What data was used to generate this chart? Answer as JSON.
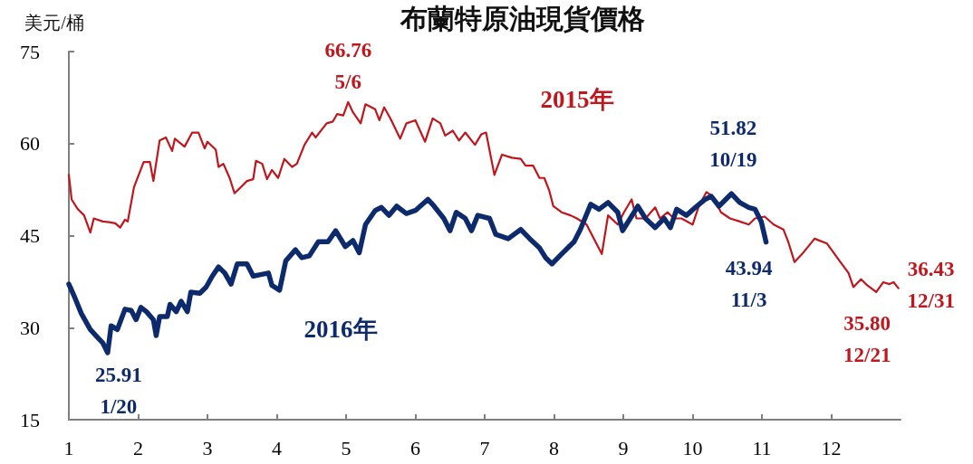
{
  "chart_data": {
    "type": "line",
    "title": "布蘭特原油現貨價格",
    "ylabel": "美元/桶",
    "xlim": [
      1,
      13
    ],
    "xticks": [
      1,
      2,
      3,
      4,
      5,
      6,
      7,
      8,
      9,
      10,
      11,
      12
    ],
    "ylim": [
      15,
      75
    ],
    "yticks": [
      15,
      30,
      45,
      60,
      75
    ],
    "series": [
      {
        "name": "2015年",
        "color": "#c0161d",
        "x": [
          1.0,
          1.04,
          1.13,
          1.22,
          1.31,
          1.36,
          1.49,
          1.58,
          1.67,
          1.74,
          1.81,
          1.85,
          1.94,
          2.08,
          2.17,
          2.22,
          2.31,
          2.4,
          2.49,
          2.53,
          2.67,
          2.78,
          2.87,
          2.96,
          3.0,
          3.12,
          3.16,
          3.23,
          3.32,
          3.39,
          3.48,
          3.57,
          3.66,
          3.7,
          3.79,
          3.86,
          3.93,
          4.02,
          4.11,
          4.22,
          4.29,
          4.4,
          4.51,
          4.56,
          4.72,
          4.81,
          4.87,
          4.96,
          5.03,
          5.1,
          5.21,
          5.28,
          5.42,
          5.48,
          5.55,
          5.64,
          5.78,
          5.87,
          6.0,
          6.14,
          6.25,
          6.36,
          6.43,
          6.54,
          6.63,
          6.72,
          6.86,
          6.95,
          7.02,
          7.14,
          7.25,
          7.39,
          7.52,
          7.59,
          7.7,
          7.79,
          7.86,
          7.93,
          7.99,
          8.11,
          8.24,
          8.33,
          8.47,
          8.69,
          8.78,
          8.92,
          9.01,
          9.12,
          9.19,
          9.32,
          9.46,
          9.53,
          9.64,
          9.73,
          9.84,
          10.0,
          10.09,
          10.2,
          10.29,
          10.41,
          10.54,
          10.68,
          10.81,
          10.9,
          11.04,
          11.17,
          11.31,
          11.38,
          11.47,
          11.58,
          11.76,
          11.94,
          12.12,
          12.25,
          12.32,
          12.43,
          12.52,
          12.65,
          12.75,
          12.84,
          12.9,
          12.97
        ],
        "values": [
          54.9,
          50.9,
          49.3,
          48.3,
          45.5,
          47.8,
          47.3,
          47.2,
          47.0,
          46.3,
          47.6,
          47.3,
          52.9,
          57.0,
          57.0,
          53.9,
          60.5,
          61.0,
          58.8,
          60.8,
          59.5,
          61.8,
          61.8,
          59.2,
          60.3,
          59.0,
          56.2,
          56.7,
          54.4,
          51.9,
          52.9,
          53.9,
          54.2,
          57.2,
          56.7,
          54.2,
          55.7,
          54.4,
          57.5,
          56.2,
          56.7,
          59.8,
          61.8,
          61.0,
          63.3,
          63.6,
          64.8,
          64.6,
          66.76,
          65.1,
          63.3,
          66.4,
          65.6,
          63.8,
          65.9,
          64.1,
          60.8,
          63.3,
          63.8,
          60.3,
          64.1,
          63.3,
          61.3,
          62.1,
          60.5,
          61.8,
          59.8,
          61.5,
          61.8,
          54.9,
          58.2,
          57.7,
          57.5,
          56.4,
          56.4,
          54.4,
          54.4,
          52.4,
          49.8,
          48.8,
          48.3,
          47.8,
          46.8,
          42.0,
          48.3,
          46.8,
          48.8,
          50.9,
          47.8,
          47.8,
          49.6,
          47.8,
          48.8,
          47.8,
          47.8,
          46.8,
          49.8,
          52.1,
          51.4,
          48.8,
          47.8,
          47.3,
          46.8,
          47.8,
          48.1,
          46.8,
          46.0,
          44.0,
          40.7,
          42.0,
          44.5,
          43.7,
          40.9,
          38.9,
          36.6,
          37.9,
          36.9,
          35.8,
          37.4,
          37.1,
          37.4,
          36.43
        ]
      },
      {
        "name": "2016年",
        "color": "#0c2a6c",
        "x": [
          1.0,
          1.09,
          1.18,
          1.31,
          1.43,
          1.49,
          1.56,
          1.61,
          1.7,
          1.81,
          1.9,
          1.97,
          2.04,
          2.12,
          2.22,
          2.26,
          2.31,
          2.42,
          2.46,
          2.55,
          2.62,
          2.71,
          2.76,
          2.89,
          2.98,
          3.07,
          3.16,
          3.25,
          3.34,
          3.43,
          3.57,
          3.66,
          3.75,
          3.88,
          3.93,
          4.04,
          4.13,
          4.27,
          4.36,
          4.47,
          4.6,
          4.74,
          4.85,
          4.99,
          5.1,
          5.19,
          5.28,
          5.42,
          5.51,
          5.62,
          5.73,
          5.87,
          6.0,
          6.18,
          6.27,
          6.41,
          6.5,
          6.59,
          6.72,
          6.81,
          6.9,
          7.07,
          7.16,
          7.34,
          7.52,
          7.65,
          7.79,
          7.88,
          7.97,
          8.11,
          8.2,
          8.29,
          8.38,
          8.53,
          8.65,
          8.78,
          8.92,
          8.99,
          9.1,
          9.21,
          9.32,
          9.46,
          9.59,
          9.68,
          9.77,
          9.91,
          10.04,
          10.18,
          10.27,
          10.38,
          10.56,
          10.68,
          10.81,
          10.9,
          10.99,
          11.06
        ],
        "values": [
          37.1,
          34.8,
          32.3,
          29.7,
          28.2,
          27.5,
          25.91,
          30.3,
          29.7,
          33.0,
          32.8,
          31.3,
          33.3,
          32.6,
          31.3,
          28.7,
          31.8,
          31.8,
          33.8,
          32.6,
          34.3,
          32.6,
          35.8,
          35.6,
          36.6,
          38.4,
          39.9,
          38.9,
          37.1,
          40.4,
          40.4,
          38.4,
          38.6,
          38.9,
          36.9,
          36.1,
          40.9,
          42.7,
          41.4,
          41.7,
          44.0,
          44.0,
          45.8,
          43.2,
          44.2,
          42.2,
          46.8,
          49.1,
          49.6,
          48.3,
          49.8,
          48.6,
          49.1,
          50.9,
          49.8,
          47.8,
          45.8,
          48.8,
          47.8,
          45.8,
          48.3,
          47.8,
          45.2,
          44.5,
          46.0,
          44.5,
          43.0,
          41.4,
          40.4,
          42.0,
          43.0,
          44.0,
          46.0,
          50.1,
          49.3,
          50.4,
          48.8,
          45.8,
          47.8,
          49.8,
          47.8,
          46.3,
          47.8,
          46.3,
          49.3,
          48.3,
          49.6,
          50.9,
          51.4,
          49.8,
          51.82,
          50.4,
          49.6,
          49.3,
          47.3,
          43.94
        ]
      }
    ],
    "annotations": [
      {
        "text": "66.76\n5/6",
        "x": 5.03,
        "y": 66.76
      },
      {
        "text": "51.82\n10/19",
        "x": 10.56,
        "y": 51.82
      },
      {
        "text": "43.94\n11/3",
        "x": 11.06,
        "y": 43.94
      },
      {
        "text": "25.91\n1/20",
        "x": 1.56,
        "y": 25.91
      },
      {
        "text": "35.80\n12/21",
        "x": 12.65,
        "y": 35.8
      },
      {
        "text": "36.43\n12/31",
        "x": 12.97,
        "y": 36.43
      }
    ]
  }
}
